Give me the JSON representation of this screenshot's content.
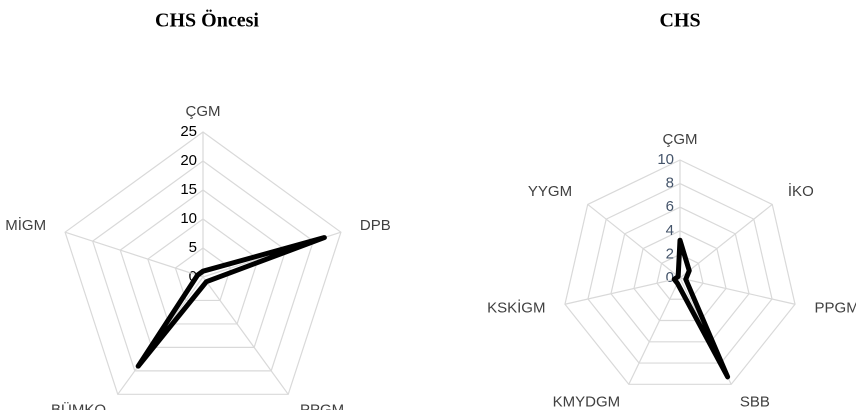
{
  "chart_data": [
    {
      "type": "radar",
      "title": "CHS Öncesi",
      "categories": [
        "ÇGM",
        "DPB",
        "PPGM",
        "BÜMKO",
        "MİGM"
      ],
      "series": [
        {
          "color": "#000000",
          "values": [
            1,
            22,
            1,
            19,
            1
          ]
        }
      ],
      "rlim": [
        0,
        25
      ],
      "rticks": [
        0,
        5,
        10,
        15,
        20,
        25
      ],
      "tick_color": "#000000",
      "grid": true
    },
    {
      "type": "radar",
      "title": "CHS",
      "categories": [
        "ÇGM",
        "İKO",
        "PPGM",
        "SBB",
        "KMYDGM",
        "KSKİGM",
        "YYGM"
      ],
      "series": [
        {
          "color": "#000000",
          "values": [
            3.2,
            1,
            0.5,
            9.3,
            0.5,
            0.5,
            0.2
          ]
        }
      ],
      "rlim": [
        0,
        10
      ],
      "rticks": [
        0,
        2,
        4,
        6,
        8,
        10
      ],
      "tick_color": "#44546a",
      "grid": true
    }
  ]
}
